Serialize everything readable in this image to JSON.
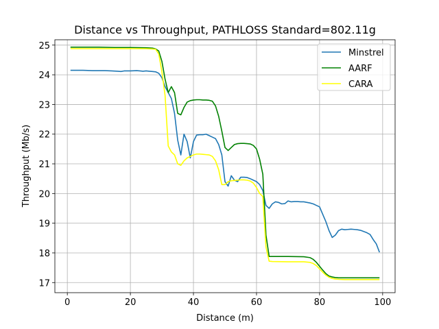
{
  "chart_data": {
    "type": "line",
    "title": "Distance vs Throughput, PATHLOSS Standard=802.11g",
    "xlabel": "Distance (m)",
    "ylabel": "Throughput (Mb/s)",
    "xlim": [
      -3.95,
      103.95
    ],
    "ylim": [
      16.66,
      25.18
    ],
    "xticks": [
      0,
      20,
      40,
      60,
      80,
      100
    ],
    "yticks": [
      17,
      18,
      19,
      20,
      21,
      22,
      23,
      24,
      25
    ],
    "grid": true,
    "legend_position": "top-right",
    "series": [
      {
        "name": "Minstrel",
        "color": "#1f77b4",
        "x": [
          1,
          5,
          8,
          12,
          14,
          16,
          17,
          18,
          20,
          22,
          23,
          24,
          25,
          26,
          27,
          28,
          29,
          30,
          31,
          32,
          33,
          34,
          35,
          36,
          37,
          38,
          39,
          40,
          41,
          42,
          43,
          44,
          45,
          46,
          47,
          48,
          49,
          50,
          51,
          52,
          53,
          54,
          55,
          56,
          57,
          58,
          59,
          60,
          61,
          62,
          63,
          64,
          65,
          66,
          67,
          68,
          69,
          70,
          71,
          72,
          73,
          74,
          75,
          76,
          77,
          78,
          79,
          80,
          81,
          82,
          83,
          84,
          85,
          86,
          87,
          88,
          89,
          90,
          91,
          92,
          93,
          94,
          95,
          96,
          97,
          98,
          99
        ],
        "y": [
          24.15,
          24.15,
          24.14,
          24.14,
          24.13,
          24.12,
          24.11,
          24.13,
          24.13,
          24.14,
          24.13,
          24.12,
          24.13,
          24.12,
          24.11,
          24.1,
          24.05,
          23.9,
          23.6,
          23.4,
          23.2,
          22.7,
          21.8,
          21.3,
          22.0,
          21.75,
          21.2,
          21.75,
          21.97,
          21.98,
          21.98,
          22.0,
          21.95,
          21.9,
          21.85,
          21.65,
          21.3,
          20.4,
          20.25,
          20.6,
          20.45,
          20.4,
          20.55,
          20.55,
          20.54,
          20.5,
          20.45,
          20.4,
          20.3,
          20.1,
          19.6,
          19.5,
          19.65,
          19.72,
          19.7,
          19.65,
          19.66,
          19.75,
          19.72,
          19.73,
          19.73,
          19.72,
          19.72,
          19.7,
          19.68,
          19.65,
          19.6,
          19.55,
          19.3,
          19.05,
          18.75,
          18.52,
          18.6,
          18.75,
          18.8,
          18.78,
          18.79,
          18.8,
          18.79,
          18.78,
          18.76,
          18.72,
          18.68,
          18.62,
          18.45,
          18.3,
          18.02
        ]
      },
      {
        "name": "AARF",
        "color": "#008000",
        "x": [
          1,
          5,
          10,
          15,
          20,
          25,
          27,
          28,
          29,
          30,
          31,
          32,
          33,
          34,
          35,
          36,
          37,
          38,
          39,
          40,
          41,
          42,
          43,
          44,
          45,
          46,
          47,
          48,
          49,
          50,
          51,
          52,
          53,
          54,
          55,
          56,
          57,
          58,
          59,
          60,
          61,
          62,
          63,
          64,
          65,
          70,
          75,
          77,
          78,
          79,
          80,
          81,
          82,
          83,
          84,
          85,
          86,
          88,
          90,
          95,
          99
        ],
        "y": [
          24.93,
          24.93,
          24.93,
          24.92,
          24.92,
          24.91,
          24.9,
          24.87,
          24.8,
          24.45,
          23.85,
          23.4,
          23.6,
          23.4,
          22.7,
          22.65,
          22.9,
          23.08,
          23.13,
          23.15,
          23.16,
          23.16,
          23.15,
          23.15,
          23.14,
          23.11,
          22.95,
          22.6,
          22.1,
          21.55,
          21.45,
          21.55,
          21.65,
          21.68,
          21.69,
          21.69,
          21.68,
          21.67,
          21.62,
          21.5,
          21.15,
          20.65,
          18.6,
          17.88,
          17.88,
          17.88,
          17.87,
          17.84,
          17.78,
          17.68,
          17.55,
          17.42,
          17.3,
          17.22,
          17.19,
          17.17,
          17.16,
          17.16,
          17.16,
          17.16,
          17.16
        ]
      },
      {
        "name": "CARA",
        "color": "#ffff00",
        "x": [
          1,
          5,
          10,
          15,
          20,
          25,
          27,
          28,
          29,
          30,
          31,
          32,
          33,
          34,
          35,
          36,
          37,
          38,
          39,
          40,
          41,
          42,
          43,
          44,
          45,
          46,
          47,
          48,
          49,
          50,
          51,
          52,
          53,
          54,
          55,
          56,
          57,
          58,
          59,
          60,
          61,
          62,
          63,
          64,
          65,
          70,
          75,
          77,
          78,
          79,
          80,
          81,
          82,
          83,
          84,
          85,
          86,
          88,
          90,
          95,
          99
        ],
        "y": [
          24.88,
          24.88,
          24.88,
          24.88,
          24.88,
          24.88,
          24.87,
          24.86,
          24.7,
          24.1,
          23.3,
          21.6,
          21.4,
          21.3,
          21.0,
          20.95,
          21.1,
          21.2,
          21.25,
          21.3,
          21.33,
          21.33,
          21.32,
          21.31,
          21.3,
          21.25,
          21.1,
          20.8,
          20.3,
          20.3,
          20.4,
          20.43,
          20.44,
          20.45,
          20.46,
          20.46,
          20.45,
          20.42,
          20.35,
          20.2,
          20.0,
          19.9,
          18.2,
          17.72,
          17.71,
          17.7,
          17.7,
          17.68,
          17.64,
          17.57,
          17.46,
          17.35,
          17.25,
          17.18,
          17.14,
          17.12,
          17.11,
          17.1,
          17.1,
          17.1,
          17.1
        ]
      }
    ]
  }
}
